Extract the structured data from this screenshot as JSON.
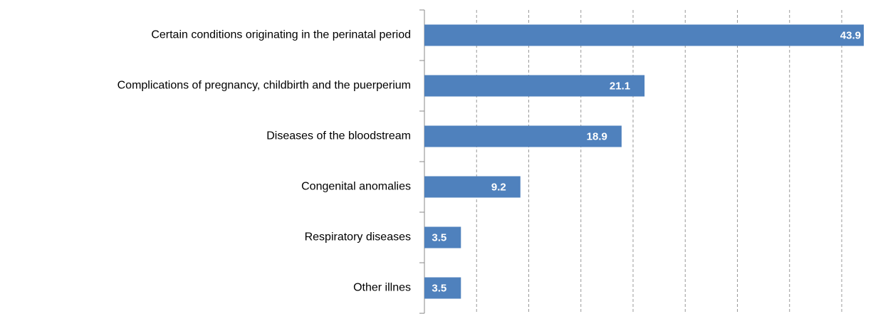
{
  "chart_data": {
    "type": "barh",
    "categories": [
      "Certain conditions originating in the perinatal period",
      "Complications of pregnancy, childbirth and the puerperium",
      "Diseases of the bloodstream",
      "Congenital anomalies",
      "Respiratory diseases",
      "Other illnes"
    ],
    "values": [
      43.9,
      21.1,
      18.9,
      9.2,
      3.5,
      3.5
    ],
    "color": "#4f81bd",
    "xlim": [
      0,
      45
    ],
    "xticks": [
      0,
      5,
      10,
      15,
      20,
      25,
      30,
      35,
      40
    ],
    "grid": true
  }
}
